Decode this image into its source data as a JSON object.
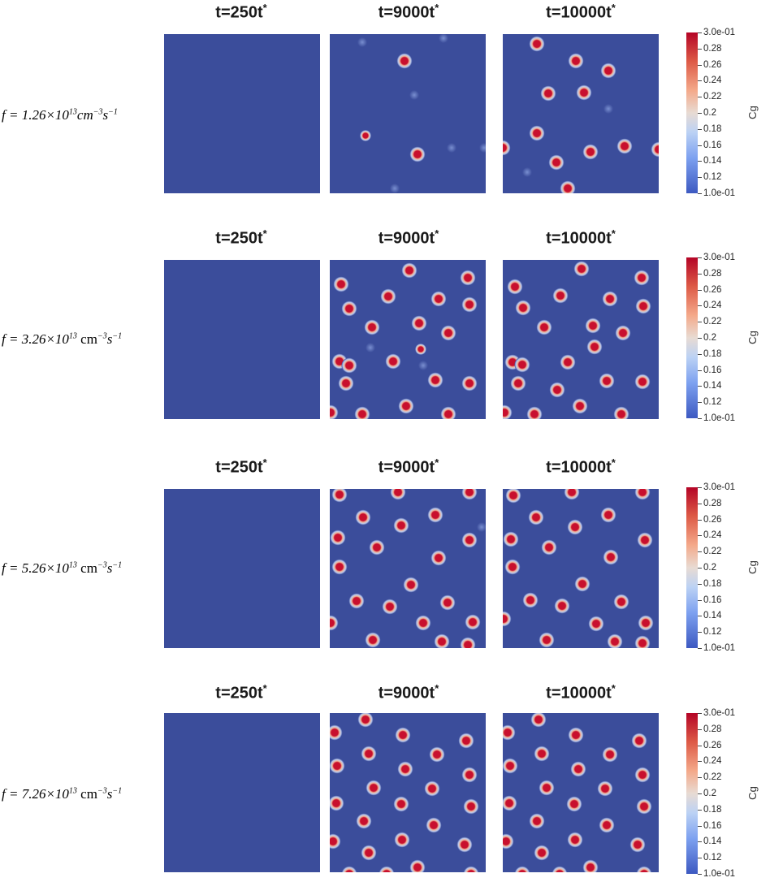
{
  "time_labels": [
    {
      "text": "t=250t",
      "star": "*"
    },
    {
      "text": "t=9000t",
      "star": "*"
    },
    {
      "text": "t=10000t",
      "star": "*"
    }
  ],
  "colorbar": {
    "label": "Cg",
    "ticks": [
      "3.0e-01",
      "0.28",
      "0.26",
      "0.24",
      "0.22",
      "0.2",
      "0.18",
      "0.16",
      "0.14",
      "0.12",
      "1.0e-01"
    ],
    "colors": [
      "#b40426",
      "#f4a98a",
      "#e8dbd3",
      "#7da1f0",
      "#3d59c1"
    ]
  },
  "rows": [
    {
      "rate_prefix": "f = 1.26×10",
      "rate_exp": "13",
      "rate_unit": "cm",
      "rate_unit_exp": "−3",
      "rate_s": "s",
      "rate_s_exp": "−1"
    },
    {
      "rate_prefix": "f = 3.26×10",
      "rate_exp": "13",
      "rate_unit": "cm",
      "rate_unit_exp": "−3",
      "rate_s": "s",
      "rate_s_exp": "−1"
    },
    {
      "rate_prefix": "f = 5.26×10",
      "rate_exp": "13",
      "rate_unit": "cm",
      "rate_unit_exp": "−3",
      "rate_s": "s",
      "rate_s_exp": "−1"
    },
    {
      "rate_prefix": "f = 7.26×10",
      "rate_exp": "13",
      "rate_unit": "cm",
      "rate_unit_exp": "−3",
      "rate_s": "s",
      "rate_s_exp": "−1"
    }
  ],
  "panel_colors": {
    "background": "#3b4d9b",
    "halo": "#f0b79a",
    "core": "#c8102e"
  }
}
